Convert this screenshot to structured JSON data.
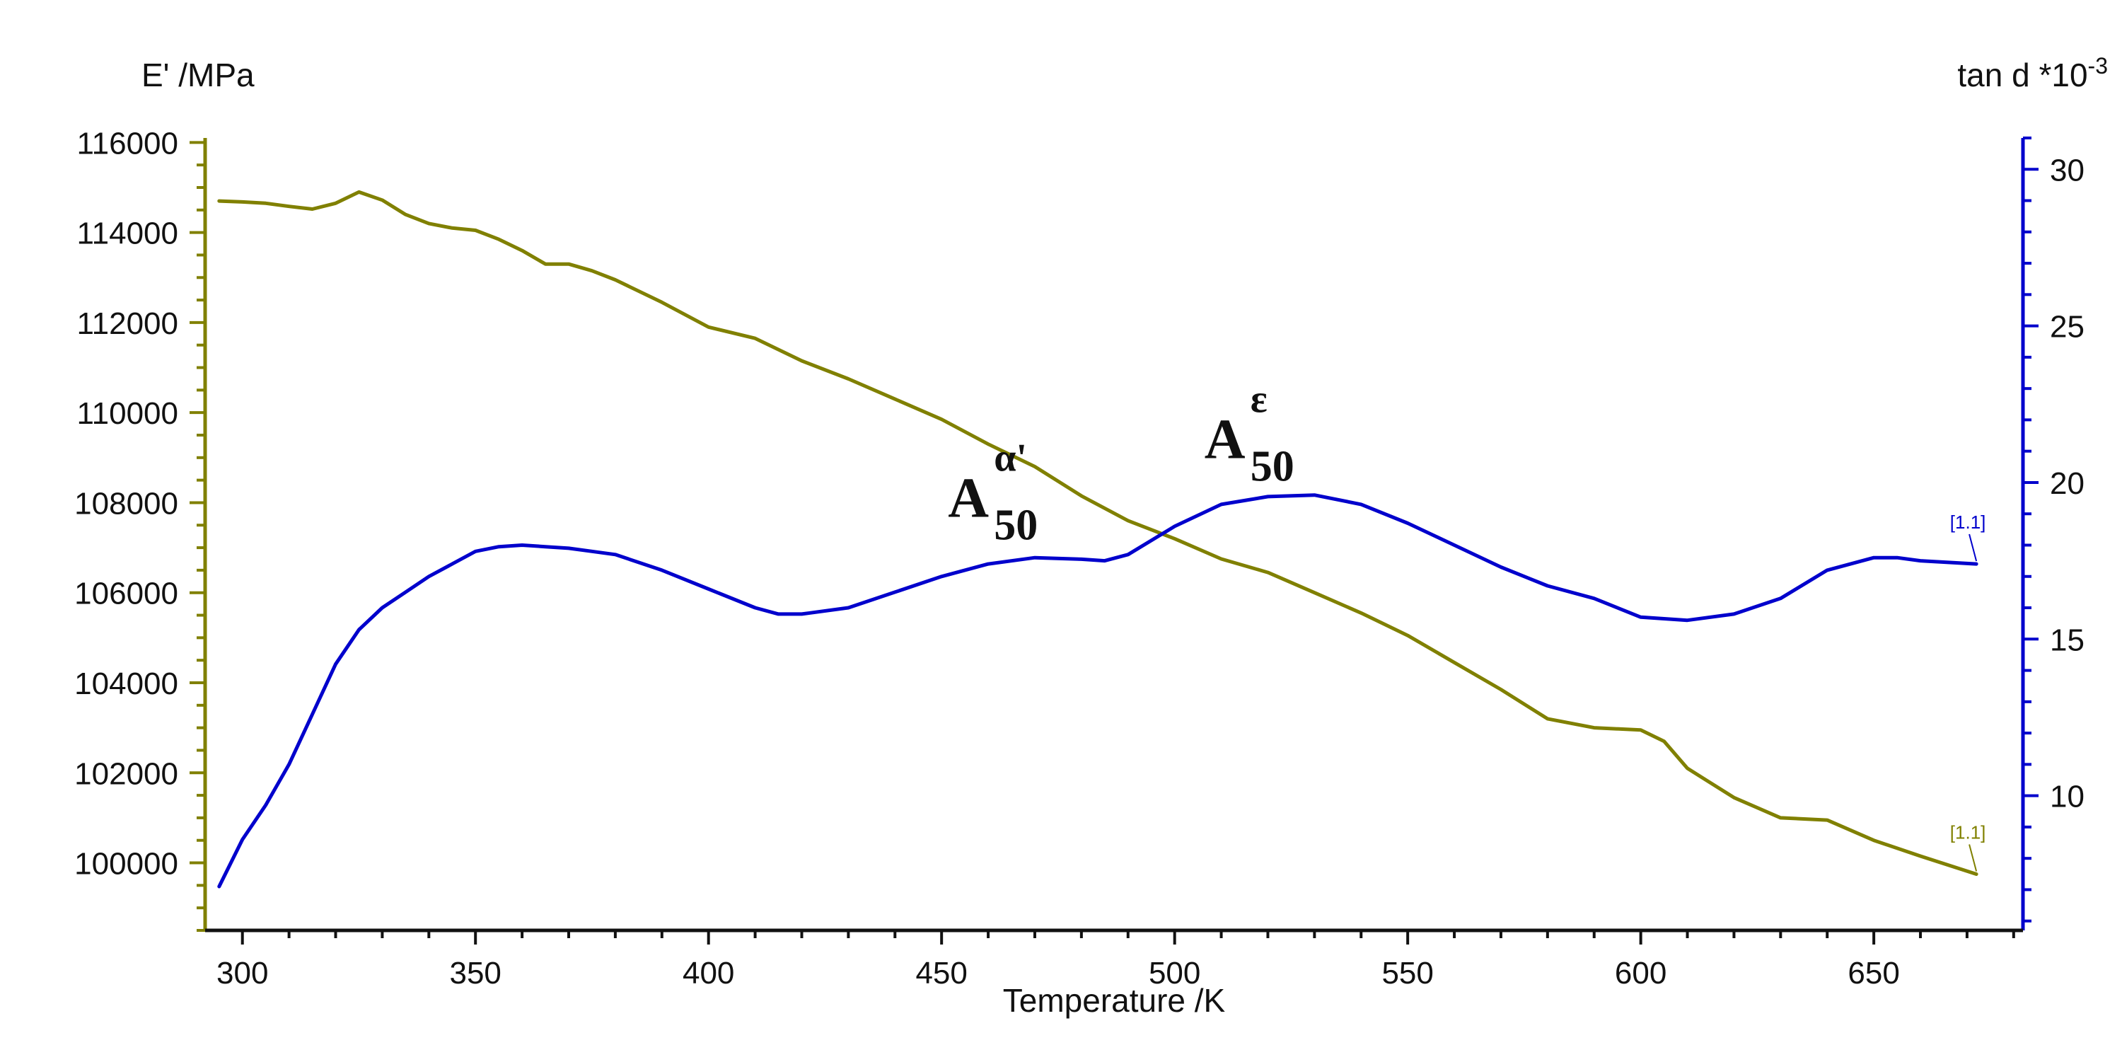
{
  "chart_data": {
    "type": "line",
    "xlabel": "Temperature /K",
    "x_ticks": [
      300,
      350,
      400,
      450,
      500,
      550,
      600,
      650
    ],
    "xlim": [
      292,
      682
    ],
    "left_axis": {
      "label": "E' /MPa",
      "ticks": [
        100000,
        102000,
        104000,
        106000,
        108000,
        110000,
        112000,
        114000,
        116000
      ],
      "ylim": [
        98500,
        116100
      ],
      "color": "#808000"
    },
    "right_axis": {
      "label": "tan d *10",
      "label_exponent": "-3",
      "ticks": [
        10,
        15,
        20,
        25,
        30
      ],
      "ylim": [
        5.7,
        31.0
      ],
      "color": "#0000cc"
    },
    "series": [
      {
        "axis": "left",
        "color": "#808000",
        "end_label": "[1.1]",
        "x": [
          295,
          300,
          305,
          310,
          315,
          320,
          325,
          330,
          335,
          340,
          345,
          350,
          355,
          360,
          365,
          370,
          375,
          380,
          390,
          400,
          410,
          420,
          430,
          440,
          450,
          460,
          470,
          480,
          490,
          500,
          510,
          520,
          530,
          540,
          550,
          560,
          570,
          580,
          590,
          600,
          605,
          610,
          620,
          630,
          640,
          650,
          660,
          672
        ],
        "y": [
          114700,
          114680,
          114650,
          114580,
          114520,
          114650,
          114900,
          114720,
          114400,
          114200,
          114100,
          114050,
          113850,
          113600,
          113300,
          113300,
          113150,
          112950,
          112450,
          111900,
          111650,
          111150,
          110750,
          110300,
          109850,
          109300,
          108800,
          108150,
          107600,
          107200,
          106750,
          106450,
          106000,
          105550,
          105050,
          104450,
          103850,
          103200,
          103000,
          102950,
          102700,
          102100,
          101450,
          101000,
          100950,
          100500,
          100150,
          99750
        ]
      },
      {
        "axis": "right",
        "color": "#0000cc",
        "end_label": "[1.1]",
        "x": [
          295,
          300,
          305,
          310,
          315,
          320,
          325,
          330,
          335,
          340,
          345,
          350,
          355,
          360,
          365,
          370,
          375,
          380,
          390,
          400,
          410,
          415,
          420,
          430,
          440,
          450,
          460,
          470,
          480,
          485,
          490,
          500,
          510,
          520,
          530,
          540,
          550,
          560,
          570,
          580,
          590,
          600,
          610,
          620,
          630,
          640,
          650,
          655,
          660,
          672
        ],
        "y": [
          7.1,
          8.6,
          9.7,
          11.0,
          12.6,
          14.2,
          15.3,
          16.0,
          16.5,
          17.0,
          17.4,
          17.8,
          17.95,
          18.0,
          17.95,
          17.9,
          17.8,
          17.7,
          17.2,
          16.6,
          16.0,
          15.8,
          15.8,
          16.0,
          16.5,
          17.0,
          17.4,
          17.6,
          17.55,
          17.5,
          17.7,
          18.6,
          19.3,
          19.55,
          19.6,
          19.3,
          18.7,
          18.0,
          17.3,
          16.7,
          16.3,
          15.7,
          15.6,
          15.8,
          16.3,
          17.2,
          17.6,
          17.6,
          17.5,
          17.4
        ]
      }
    ],
    "annotations": [
      {
        "base": "A",
        "superscript": "α'",
        "subscript": "50",
        "x": 462,
        "y": 108000
      },
      {
        "base": "A",
        "superscript": "ε",
        "subscript": "50",
        "x": 517,
        "y": 109300
      }
    ]
  }
}
